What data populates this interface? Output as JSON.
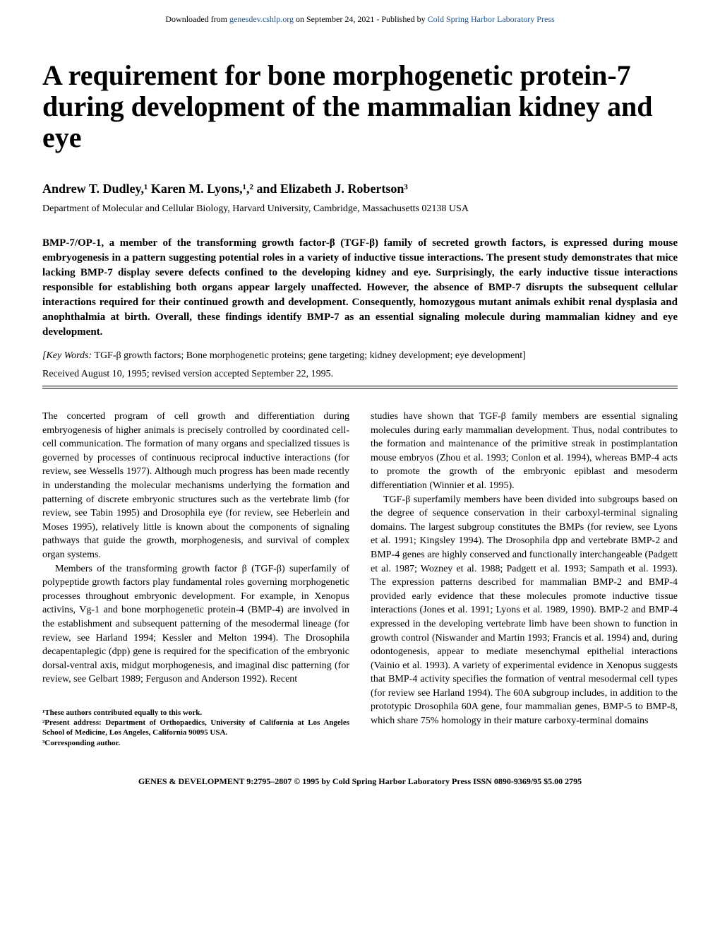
{
  "download_bar": {
    "prefix": "Downloaded from ",
    "link1": "genesdev.cshlp.org",
    "middle": " on September 24, 2021 - Published by ",
    "link2": "Cold Spring Harbor Laboratory Press"
  },
  "title": "A requirement for bone morphogenetic protein-7 during development of the mammalian kidney and eye",
  "authors": "Andrew T. Dudley,¹ Karen M. Lyons,¹,² and Elizabeth J. Robertson³",
  "affiliation": "Department of Molecular and Cellular Biology, Harvard University, Cambridge, Massachusetts 02138 USA",
  "abstract": "BMP-7/OP-1, a member of the transforming growth factor-β (TGF-β) family of secreted growth factors, is expressed during mouse embryogenesis in a pattern suggesting potential roles in a variety of inductive tissue interactions. The present study demonstrates that mice lacking BMP-7 display severe defects confined to the developing kidney and eye. Surprisingly, the early inductive tissue interactions responsible for establishing both organs appear largely unaffected. However, the absence of BMP-7 disrupts the subsequent cellular interactions required for their continued growth and development. Consequently, homozygous mutant animals exhibit renal dysplasia and anophthalmia at birth. Overall, these findings identify BMP-7 as an essential signaling molecule during mammalian kidney and eye development.",
  "keywords_label": "[Key Words:",
  "keywords_text": " TGF-β growth factors; Bone morphogenetic proteins; gene targeting; kidney development; eye development]",
  "received": "Received August 10, 1995; revised version accepted September 22, 1995.",
  "col1_p1": "The concerted program of cell growth and differentiation during embryogenesis of higher animals is precisely controlled by coordinated cell-cell communication. The formation of many organs and specialized tissues is governed by processes of continuous reciprocal inductive interactions (for review, see Wessells 1977). Although much progress has been made recently in understanding the molecular mechanisms underlying the formation and patterning of discrete embryonic structures such as the vertebrate limb (for review, see Tabin 1995) and Drosophila eye (for review, see Heberlein and Moses 1995), relatively little is known about the components of signaling pathways that guide the growth, morphogenesis, and survival of complex organ systems.",
  "col1_p2": "Members of the transforming growth factor β (TGF-β) superfamily of polypeptide growth factors play fundamental roles governing morphogenetic processes throughout embryonic development. For example, in Xenopus activins, Vg-1 and bone morphogenetic protein-4 (BMP-4) are involved in the establishment and subsequent patterning of the mesodermal lineage (for review, see Harland 1994; Kessler and Melton 1994). The Drosophila decapentaplegic (dpp) gene is required for the specification of the embryonic dorsal-ventral axis, midgut morphogenesis, and imaginal disc patterning (for review, see Gelbart 1989; Ferguson and Anderson 1992). Recent",
  "col2_p1": "studies have shown that TGF-β family members are essential signaling molecules during early mammalian development. Thus, nodal contributes to the formation and maintenance of the primitive streak in postimplantation mouse embryos (Zhou et al. 1993; Conlon et al. 1994), whereas BMP-4 acts to promote the growth of the embryonic epiblast and mesoderm differentiation (Winnier et al. 1995).",
  "col2_p2": "TGF-β superfamily members have been divided into subgroups based on the degree of sequence conservation in their carboxyl-terminal signaling domains. The largest subgroup constitutes the BMPs (for review, see Lyons et al. 1991; Kingsley 1994). The Drosophila dpp and vertebrate BMP-2 and BMP-4 genes are highly conserved and functionally interchangeable (Padgett et al. 1987; Wozney et al. 1988; Padgett et al. 1993; Sampath et al. 1993). The expression patterns described for mammalian BMP-2 and BMP-4 provided early evidence that these molecules promote inductive tissue interactions (Jones et al. 1991; Lyons et al. 1989, 1990). BMP-2 and BMP-4 expressed in the developing vertebrate limb have been shown to function in growth control (Niswander and Martin 1993; Francis et al. 1994) and, during odontogenesis, appear to mediate mesenchymal epithelial interactions (Vainio et al. 1993). A variety of experimental evidence in Xenopus suggests that BMP-4 activity specifies the formation of ventral mesodermal cell types (for review see Harland 1994). The 60A subgroup includes, in addition to the prototypic Drosophila 60A gene, four mammalian genes, BMP-5 to BMP-8, which share 75% homology in their mature carboxy-terminal domains",
  "footnote1": "¹These authors contributed equally to this work.",
  "footnote2": "²Present address: Department of Orthopaedics, University of California at Los Angeles School of Medicine, Los Angeles, California 90095 USA.",
  "footnote3": "³Corresponding author.",
  "footer": "GENES & DEVELOPMENT 9:2795–2807 © 1995 by Cold Spring Harbor Laboratory Press ISSN 0890-9369/95 $5.00     2795"
}
